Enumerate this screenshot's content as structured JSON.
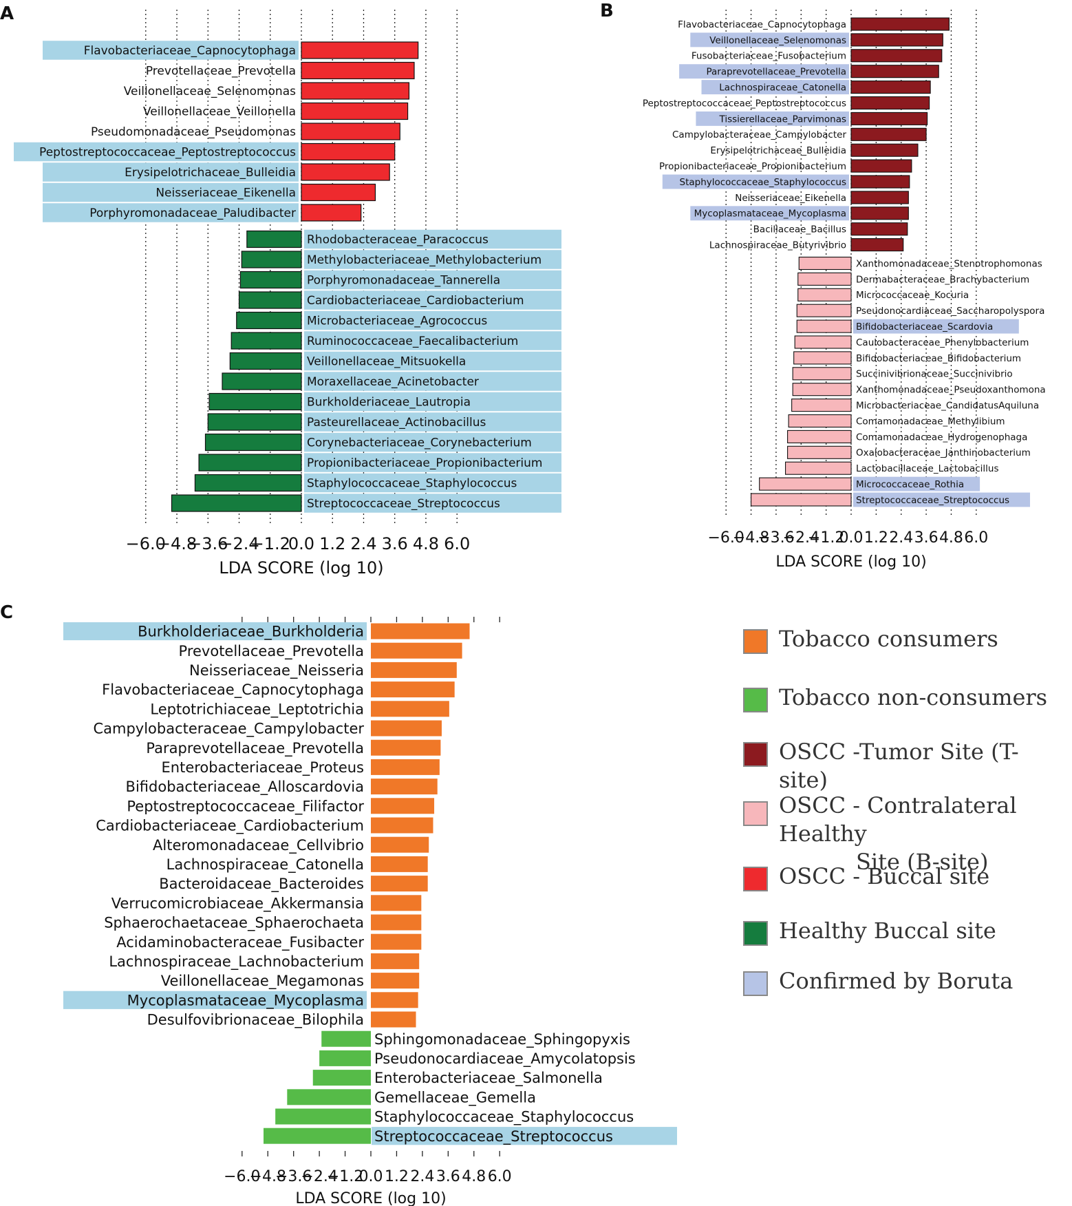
{
  "panel_labels": {
    "a": "A",
    "b": "B",
    "c": "C"
  },
  "legend": [
    {
      "label": "Tobacco consumers",
      "color": "#f07828"
    },
    {
      "label": "Tobacco non-consumers",
      "color": "#56bb48"
    },
    {
      "label": "OSCC -Tumor Site (T-site)",
      "color": "#8c1a1f"
    },
    {
      "label_lines": [
        "OSCC - Contralateral Healthy",
        "Site (B-site)"
      ],
      "color": "#f7b7bb"
    },
    {
      "label": "OSCC - Buccal site",
      "color": "#ee2a2e"
    },
    {
      "label": "Healthy Buccal site",
      "color": "#157c3e"
    },
    {
      "label": "Confirmed by Boruta",
      "color": "#b6c4e6"
    }
  ],
  "chart_data": [
    {
      "panel": "A",
      "type": "bar",
      "orientation": "horizontal",
      "xlabel": "LDA SCORE (log 10)",
      "xlim": [
        -6.0,
        6.0
      ],
      "xticks": [
        "-6.0",
        "-4.8",
        "-3.6",
        "-2.4",
        "-1.2",
        "0.0",
        "1.2",
        "2.4",
        "3.6",
        "4.8",
        "6.0"
      ],
      "grid": true,
      "highlight_color": "#a8d4e6",
      "series": [
        {
          "name": "OSCC - Buccal site",
          "color": "#ee2a2e"
        },
        {
          "name": "Healthy Buccal site",
          "color": "#157c3e"
        }
      ],
      "bars": [
        {
          "label": "Flavobacteriaceae_Capnocytophaga",
          "value": 4.5,
          "group": "OSCC - Buccal site",
          "highlight": true
        },
        {
          "label": "Prevotellaceae_Prevotella",
          "value": 4.35,
          "group": "OSCC - Buccal site",
          "highlight": false
        },
        {
          "label": "Veillonellaceae_Selenomonas",
          "value": 4.15,
          "group": "OSCC - Buccal site",
          "highlight": false
        },
        {
          "label": "Veillonellaceae_Veillonella",
          "value": 4.1,
          "group": "OSCC - Buccal site",
          "highlight": false
        },
        {
          "label": "Pseudomonadaceae_Pseudomonas",
          "value": 3.8,
          "group": "OSCC - Buccal site",
          "highlight": false
        },
        {
          "label": "Peptostreptococcaceae_Peptostreptococcus",
          "value": 3.6,
          "group": "OSCC - Buccal site",
          "highlight": true
        },
        {
          "label": "Erysipelotrichaceae_Bulleidia",
          "value": 3.4,
          "group": "OSCC - Buccal site",
          "highlight": true
        },
        {
          "label": "Neisseriaceae_Eikenella",
          "value": 2.85,
          "group": "OSCC - Buccal site",
          "highlight": true
        },
        {
          "label": "Porphyromonadaceae_Paludibacter",
          "value": 2.3,
          "group": "OSCC - Buccal site",
          "highlight": true
        },
        {
          "label": "Rhodobacteraceae_Paracoccus",
          "value": -2.1,
          "group": "Healthy Buccal site",
          "highlight": true
        },
        {
          "label": "Methylobacteriaceae_Methylobacterium",
          "value": -2.3,
          "group": "Healthy Buccal site",
          "highlight": true
        },
        {
          "label": "Porphyromonadaceae_Tannerella",
          "value": -2.35,
          "group": "Healthy Buccal site",
          "highlight": true
        },
        {
          "label": "Cardiobacteriaceae_Cardiobacterium",
          "value": -2.4,
          "group": "Healthy Buccal site",
          "highlight": true
        },
        {
          "label": "Microbacteriaceae_Agrococcus",
          "value": -2.5,
          "group": "Healthy Buccal site",
          "highlight": true
        },
        {
          "label": "Ruminococcaceae_Faecalibacterium",
          "value": -2.7,
          "group": "Healthy Buccal site",
          "highlight": true
        },
        {
          "label": "Veillonellaceae_Mitsuokella",
          "value": -2.75,
          "group": "Healthy Buccal site",
          "highlight": true
        },
        {
          "label": "Moraxellaceae_Acinetobacter",
          "value": -3.05,
          "group": "Healthy Buccal site",
          "highlight": true
        },
        {
          "label": "Burkholderiaceae_Lautropia",
          "value": -3.55,
          "group": "Healthy Buccal site",
          "highlight": true
        },
        {
          "label": "Pasteurellaceae_Actinobacillus",
          "value": -3.6,
          "group": "Healthy Buccal site",
          "highlight": true
        },
        {
          "label": "Corynebacteriaceae_Corynebacterium",
          "value": -3.7,
          "group": "Healthy Buccal site",
          "highlight": true
        },
        {
          "label": "Propionibacteriaceae_Propionibacterium",
          "value": -3.95,
          "group": "Healthy Buccal site",
          "highlight": true
        },
        {
          "label": "Staphylococcaceae_Staphylococcus",
          "value": -4.1,
          "group": "Healthy Buccal site",
          "highlight": true
        },
        {
          "label": "Streptococcaceae_Streptococcus",
          "value": -5.0,
          "group": "Healthy Buccal site",
          "highlight": true
        }
      ]
    },
    {
      "panel": "B",
      "type": "bar",
      "orientation": "horizontal",
      "xlabel": "LDA SCORE (log 10)",
      "xlim": [
        -6.0,
        6.0
      ],
      "xticks": [
        "-6.0",
        "-4.8",
        "-3.6",
        "-2.4",
        "-1.2",
        "0.0",
        "1.2",
        "2.4",
        "3.6",
        "4.8",
        "6.0"
      ],
      "grid": true,
      "highlight_color": "#b6c4e6",
      "series": [
        {
          "name": "OSCC -Tumor Site (T-site)",
          "color": "#8c1a1f"
        },
        {
          "name": "OSCC - Contralateral Healthy Site (B-site)",
          "color": "#f7b7bb"
        }
      ],
      "bars": [
        {
          "label": "Flavobacteriaceae_Capnocytophaga",
          "value": 4.7,
          "group": "T-site",
          "highlight": false
        },
        {
          "label": "Veillonellaceae_Selenomonas",
          "value": 4.4,
          "group": "T-site",
          "highlight": true
        },
        {
          "label": "Fusobacteriaceae_Fusobacterium",
          "value": 4.35,
          "group": "T-site",
          "highlight": false
        },
        {
          "label": "Paraprevotellaceae_Prevotella",
          "value": 4.2,
          "group": "T-site",
          "highlight": true
        },
        {
          "label": "Lachnospiraceae_Catonella",
          "value": 3.8,
          "group": "T-site",
          "highlight": true
        },
        {
          "label": "Peptostreptococcaceae_Peptostreptococcus",
          "value": 3.75,
          "group": "T-site",
          "highlight": false
        },
        {
          "label": "Tissierellaceae_Parvimonas",
          "value": 3.65,
          "group": "T-site",
          "highlight": true
        },
        {
          "label": "Campylobacteraceae_Campylobacter",
          "value": 3.6,
          "group": "T-site",
          "highlight": false
        },
        {
          "label": "Erysipelotrichaceae_Bulleidia",
          "value": 3.2,
          "group": "T-site",
          "highlight": false
        },
        {
          "label": "Propionibacteriaceae_Propionibacterium",
          "value": 2.9,
          "group": "T-site",
          "highlight": false
        },
        {
          "label": "Staphylococcaceae_Staphylococcus",
          "value": 2.8,
          "group": "T-site",
          "highlight": true
        },
        {
          "label": "Neisseriaceae_Eikenella",
          "value": 2.75,
          "group": "T-site",
          "highlight": false
        },
        {
          "label": "Mycoplasmataceae_Mycoplasma",
          "value": 2.75,
          "group": "T-site",
          "highlight": true
        },
        {
          "label": "Bacillaceae_Bacillus",
          "value": 2.7,
          "group": "T-site",
          "highlight": false
        },
        {
          "label": "Lachnospiraceae_Butyrivibrio",
          "value": 2.5,
          "group": "T-site",
          "highlight": false
        },
        {
          "label": "Xanthomonadaceae_Stenotrophomonas",
          "value": -2.5,
          "group": "B-site",
          "highlight": false
        },
        {
          "label": "Dermabacteraceae_Brachybacterium",
          "value": -2.55,
          "group": "B-site",
          "highlight": false
        },
        {
          "label": "Micrococcaceae_Kocuria",
          "value": -2.55,
          "group": "B-site",
          "highlight": false
        },
        {
          "label": "Pseudonocardiaceae_Saccharopolyspora",
          "value": -2.6,
          "group": "B-site",
          "highlight": false
        },
        {
          "label": "Bifidobacteriaceae_Scardovia",
          "value": -2.6,
          "group": "B-site",
          "highlight": true
        },
        {
          "label": "Caulobacteraceae_Phenylobacterium",
          "value": -2.7,
          "group": "B-site",
          "highlight": false
        },
        {
          "label": "Bifidobacteriaceae_Bifidobacterium",
          "value": -2.75,
          "group": "B-site",
          "highlight": false
        },
        {
          "label": "Succinivibrionaceae_Succinivibrio",
          "value": -2.8,
          "group": "B-site",
          "highlight": false
        },
        {
          "label": "Xanthomonadaceae_Pseudoxanthomona",
          "value": -2.8,
          "group": "B-site",
          "highlight": false
        },
        {
          "label": "Microbacteriaceae_CandidatusAquiluna",
          "value": -2.85,
          "group": "B-site",
          "highlight": false
        },
        {
          "label": "Comamonadaceae_Methylibium",
          "value": -3.0,
          "group": "B-site",
          "highlight": false
        },
        {
          "label": "Comamonadaceae_Hydrogenophaga",
          "value": -3.05,
          "group": "B-site",
          "highlight": false
        },
        {
          "label": "Oxalobacteraceae_Janthinobacterium",
          "value": -3.05,
          "group": "B-site",
          "highlight": false
        },
        {
          "label": "Lactobacillaceae_Lactobacillus",
          "value": -3.15,
          "group": "B-site",
          "highlight": false
        },
        {
          "label": "Micrococcaceae_Rothia",
          "value": -4.4,
          "group": "B-site",
          "highlight": true
        },
        {
          "label": "Streptococcaceae_Streptococcus",
          "value": -4.8,
          "group": "B-site",
          "highlight": true
        }
      ]
    },
    {
      "panel": "C",
      "type": "bar",
      "orientation": "horizontal",
      "xlabel": "LDA SCORE (log 10)",
      "xlim": [
        -6.0,
        6.0
      ],
      "xticks": [
        "-6.0",
        "-4.8",
        "-3.6",
        "-2.4",
        "-1.2",
        "0.0",
        "1.2",
        "2.4",
        "3.6",
        "4.8",
        "6.0"
      ],
      "xtick_labels": [
        "−6.0",
        "−4.8",
        "−3.6",
        "−2.4",
        "−1.2",
        "0.0",
        "1.2",
        "2.4",
        "3.6",
        "4.8",
        "6.0"
      ],
      "grid": false,
      "highlight_color": "#a8d4e6",
      "series": [
        {
          "name": "Tobacco consumers",
          "color": "#f07828"
        },
        {
          "name": "Tobacco non-consumers",
          "color": "#56bb48"
        }
      ],
      "bars": [
        {
          "label": "Burkholderiaceae_Burkholderia",
          "value": 4.6,
          "group": "Tobacco consumers",
          "highlight": true
        },
        {
          "label": "Prevotellaceae_Prevotella",
          "value": 4.25,
          "group": "Tobacco consumers",
          "highlight": false
        },
        {
          "label": "Neisseriaceae_Neisseria",
          "value": 4.0,
          "group": "Tobacco consumers",
          "highlight": false
        },
        {
          "label": "Flavobacteriaceae_Capnocytophaga",
          "value": 3.9,
          "group": "Tobacco consumers",
          "highlight": false
        },
        {
          "label": "Leptotrichiaceae_Leptotrichia",
          "value": 3.65,
          "group": "Tobacco consumers",
          "highlight": false
        },
        {
          "label": "Campylobacteraceae_Campylobacter",
          "value": 3.3,
          "group": "Tobacco consumers",
          "highlight": false
        },
        {
          "label": "Paraprevotellaceae_Prevotella",
          "value": 3.25,
          "group": "Tobacco consumers",
          "highlight": false
        },
        {
          "label": "Enterobacteriaceae_Proteus",
          "value": 3.2,
          "group": "Tobacco consumers",
          "highlight": false
        },
        {
          "label": "Bifidobacteriaceae_Alloscardovia",
          "value": 3.1,
          "group": "Tobacco consumers",
          "highlight": false
        },
        {
          "label": "Peptostreptococcaceae_Filifactor",
          "value": 2.95,
          "group": "Tobacco consumers",
          "highlight": false
        },
        {
          "label": "Cardiobacteriaceae_Cardiobacterium",
          "value": 2.9,
          "group": "Tobacco consumers",
          "highlight": false
        },
        {
          "label": "Alteromonadaceae_Cellvibrio",
          "value": 2.7,
          "group": "Tobacco consumers",
          "highlight": false
        },
        {
          "label": "Lachnospiraceae_Catonella",
          "value": 2.65,
          "group": "Tobacco consumers",
          "highlight": false
        },
        {
          "label": "Bacteroidaceae_Bacteroides",
          "value": 2.65,
          "group": "Tobacco consumers",
          "highlight": false
        },
        {
          "label": "Verrucomicrobiaceae_Akkermansia",
          "value": 2.35,
          "group": "Tobacco consumers",
          "highlight": false
        },
        {
          "label": "Sphaerochaetaceae_Sphaerochaeta",
          "value": 2.35,
          "group": "Tobacco consumers",
          "highlight": false
        },
        {
          "label": "Acidaminobacteraceae_Fusibacter",
          "value": 2.35,
          "group": "Tobacco consumers",
          "highlight": false
        },
        {
          "label": "Lachnospiraceae_Lachnobacterium",
          "value": 2.25,
          "group": "Tobacco consumers",
          "highlight": false
        },
        {
          "label": "Veillonellaceae_Megamonas",
          "value": 2.25,
          "group": "Tobacco consumers",
          "highlight": false
        },
        {
          "label": "Mycoplasmataceae_Mycoplasma",
          "value": 2.2,
          "group": "Tobacco consumers",
          "highlight": true
        },
        {
          "label": "Desulfovibrionaceae_Bilophila",
          "value": 2.1,
          "group": "Tobacco consumers",
          "highlight": false
        },
        {
          "label": "Sphingomonadaceae_Sphingopyxis",
          "value": -2.3,
          "group": "Tobacco non-consumers",
          "highlight": false
        },
        {
          "label": "Pseudonocardiaceae_Amycolatopsis",
          "value": -2.4,
          "group": "Tobacco non-consumers",
          "highlight": false
        },
        {
          "label": "Enterobacteriaceae_Salmonella",
          "value": -2.7,
          "group": "Tobacco non-consumers",
          "highlight": false
        },
        {
          "label": "Gemellaceae_Gemella",
          "value": -3.9,
          "group": "Tobacco non-consumers",
          "highlight": false
        },
        {
          "label": "Staphylococcaceae_Staphylococcus",
          "value": -4.45,
          "group": "Tobacco non-consumers",
          "highlight": false
        },
        {
          "label": "Streptococcaceae_Streptococcus",
          "value": -5.0,
          "group": "Tobacco non-consumers",
          "highlight": true
        }
      ]
    }
  ]
}
